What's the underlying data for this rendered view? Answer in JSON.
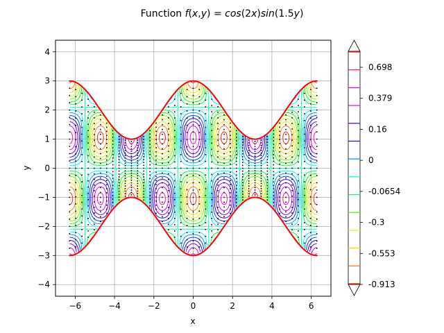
{
  "chart_data": {
    "type": "contour",
    "title": {
      "prefix": "Function ",
      "math": [
        {
          "t": "f",
          "i": true
        },
        {
          "t": "(",
          "i": false
        },
        {
          "t": "x",
          "i": true
        },
        {
          "t": ",",
          "i": false
        },
        {
          "t": "y",
          "i": true
        },
        {
          "t": ") = ",
          "i": false
        },
        {
          "t": "cos",
          "i": true
        },
        {
          "t": "(2",
          "i": false
        },
        {
          "t": "x",
          "i": true
        },
        {
          "t": ")",
          "i": false
        },
        {
          "t": "sin",
          "i": true
        },
        {
          "t": "(1.5",
          "i": false
        },
        {
          "t": "y",
          "i": true
        },
        {
          "t": ")",
          "i": false
        }
      ]
    },
    "function": "cos(2x)*sin(1.5y)",
    "xlabel": "x",
    "ylabel": "y",
    "xlim": [
      -7,
      7
    ],
    "ylim": [
      -4.4,
      4.4
    ],
    "xticks": [
      -6,
      -4,
      -2,
      0,
      2,
      4,
      6
    ],
    "yticks": [
      -4,
      -3,
      -2,
      -1,
      0,
      1,
      2,
      3,
      4
    ],
    "xtick_labels": [
      "−6",
      "−4",
      "−2",
      "0",
      "2",
      "4",
      "6"
    ],
    "ytick_labels": [
      "−4",
      "−3",
      "−2",
      "−1",
      "0",
      "1",
      "2",
      "3",
      "4"
    ],
    "grid": true,
    "domain": {
      "x_range": [
        -6.2832,
        6.2832
      ],
      "boundary": "|y| <= 2 + cos(x)"
    },
    "boundary_color": "#ff0000",
    "contour_levels": [
      -0.913,
      -0.553,
      -0.3,
      -0.0654,
      0,
      0.16,
      0.379,
      0.698
    ],
    "colorbar": {
      "extend": "both",
      "tick_labels": [
        "0.698",
        "0.379",
        "0.16",
        "0",
        "-0.0654",
        "-0.3",
        "-0.553",
        "-0.913"
      ],
      "colors": [
        "#ff0000",
        "#ff6a00",
        "#ffd400",
        "#bfff00",
        "#55ff00",
        "#00ff6a",
        "#00ffd4",
        "#0095ff",
        "#0015ff",
        "#5500ff",
        "#bf00ff",
        "#ff00d4",
        "#ff0080",
        "#ff1e1e"
      ]
    }
  }
}
